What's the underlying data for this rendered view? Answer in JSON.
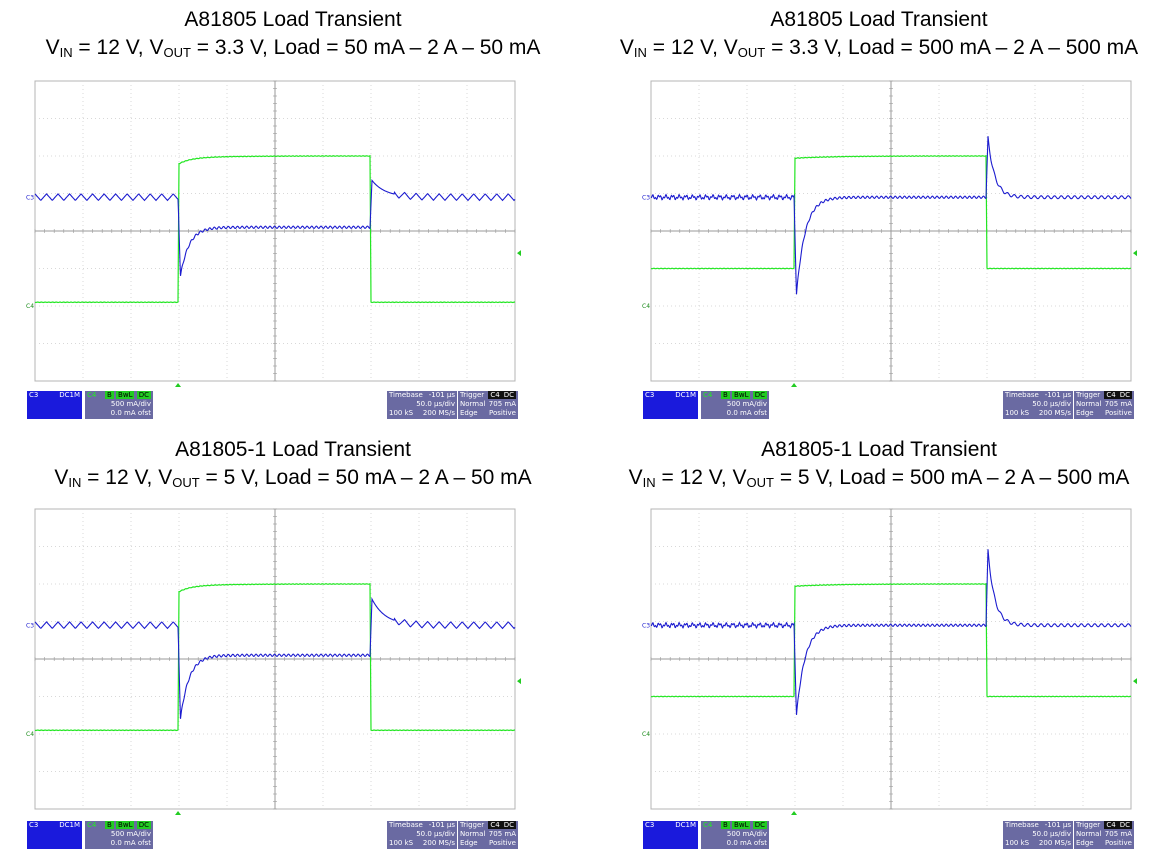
{
  "chart_data": [
    {
      "type": "line",
      "title": "A81805 Load Transient",
      "subtitle": {
        "pre": "V",
        "sub_in": "IN",
        "mid1": " = 12 V, V",
        "sub_out": "OUT",
        "rest": " = 3.3 V, Load = 50 mA – 2 A – 50 mA"
      },
      "xlim": [
        -101,
        399
      ],
      "series": [
        {
          "name": "C4",
          "color": "#22e622",
          "low": 0.05,
          "high": 2.0,
          "step_up_us": 48,
          "step_down_us": 248,
          "overshoot_dip": 0.08
        },
        {
          "name": "C3",
          "color": "#1c1ccf",
          "baseline_div": 3.1,
          "ripple": "sawtooth",
          "settled_div": 3.9,
          "undershoot_div": 5.2,
          "overshoot_div": 2.65
        }
      ],
      "channel_box": {
        "c3_label": "C3",
        "c3_l2": "DC1M",
        "c3_l3": "",
        "c4_label": "C4",
        "c4_badges": [
          "B",
          "BwL",
          "DC"
        ],
        "c4_scale": "500 mA/div",
        "c4_ofst": "0.0 mA ofst"
      },
      "timebase": {
        "label": "Timebase",
        "delay": "-101 µs",
        "per_div": "50.0 µs/div",
        "samples": "100 kS",
        "rate": "200 MS/s"
      },
      "trigger": {
        "label": "Trigger",
        "chip": "C4",
        "chip2": "DC",
        "mode": "Normal",
        "level": "705 mA",
        "type": "Edge",
        "slope": "Positive"
      }
    },
    {
      "type": "line",
      "title": "A81805 Load Transient",
      "subtitle": {
        "pre": "V",
        "sub_in": "IN",
        "mid1": " = 12 V, V",
        "sub_out": "OUT",
        "rest": " = 3.3 V, Load = 500 mA – 2 A – 500 mA"
      },
      "xlim": [
        -101,
        399
      ],
      "series": [
        {
          "name": "C4",
          "color": "#22e622",
          "low": 0.5,
          "high": 2.0,
          "step_up_us": 48,
          "step_down_us": 248,
          "overshoot_dip": 0.0
        },
        {
          "name": "C3",
          "color": "#1c1ccf",
          "baseline_div": 3.1,
          "ripple": "noise",
          "settled_div": 3.1,
          "undershoot_div": 5.7,
          "overshoot_div": 1.5
        }
      ],
      "channel_box": {
        "c3_label": "C3",
        "c3_l2": "DC1M",
        "c3_l3": "",
        "c4_label": "C4",
        "c4_badges": [
          "B",
          "BwL",
          "DC"
        ],
        "c4_scale": "500 mA/div",
        "c4_ofst": "0.0 mA ofst"
      },
      "timebase": {
        "label": "Timebase",
        "delay": "-101 µs",
        "per_div": "50.0 µs/div",
        "samples": "100 kS",
        "rate": "200 MS/s"
      },
      "trigger": {
        "label": "Trigger",
        "chip": "C4",
        "chip2": "DC",
        "mode": "Normal",
        "level": "705 mA",
        "type": "Edge",
        "slope": "Positive"
      }
    },
    {
      "type": "line",
      "title": "A81805-1 Load Transient",
      "subtitle": {
        "pre": "V",
        "sub_in": "IN",
        "mid1": " = 12 V, V",
        "sub_out": "OUT",
        "rest": " = 5 V, Load = 50 mA – 2 A – 50 mA"
      },
      "xlim": [
        -101,
        399
      ],
      "series": [
        {
          "name": "C4",
          "color": "#22e622",
          "low": 0.05,
          "high": 2.0,
          "step_up_us": 48,
          "step_down_us": 248,
          "overshoot_dip": 0.08
        },
        {
          "name": "C3",
          "color": "#1c1ccf",
          "baseline_div": 3.1,
          "ripple": "sawtooth",
          "settled_div": 3.9,
          "undershoot_div": 5.6,
          "overshoot_div": 2.4
        }
      ],
      "channel_box": {
        "c3_label": "C3",
        "c3_l2": "DC1M",
        "c3_l3": "",
        "c4_label": "C4",
        "c4_badges": [
          "B",
          "BwL",
          "DC"
        ],
        "c4_scale": "500 mA/div",
        "c4_ofst": "0.0 mA ofst"
      },
      "timebase": {
        "label": "Timebase",
        "delay": "-101 µs",
        "per_div": "50.0 µs/div",
        "samples": "100 kS",
        "rate": "200 MS/s"
      },
      "trigger": {
        "label": "Trigger",
        "chip": "C4",
        "chip2": "DC",
        "mode": "Normal",
        "level": "705 mA",
        "type": "Edge",
        "slope": "Positive"
      }
    },
    {
      "type": "line",
      "title": "A81805-1 Load Transient",
      "subtitle": {
        "pre": "V",
        "sub_in": "IN",
        "mid1": " = 12 V, V",
        "sub_out": "OUT",
        "rest": " = 5 V, Load = 500 mA – 2 A – 500 mA"
      },
      "xlim": [
        -101,
        399
      ],
      "series": [
        {
          "name": "C4",
          "color": "#22e622",
          "low": 0.5,
          "high": 2.0,
          "step_up_us": 48,
          "step_down_us": 248,
          "overshoot_dip": 0.0
        },
        {
          "name": "C3",
          "color": "#1c1ccf",
          "baseline_div": 3.1,
          "ripple": "noise",
          "settled_div": 3.1,
          "undershoot_div": 5.5,
          "overshoot_div": 1.1
        }
      ],
      "channel_box": {
        "c3_label": "C3",
        "c3_l2": "DC1M",
        "c3_l3": "",
        "c4_label": "C4",
        "c4_badges": [
          "B",
          "BwL",
          "DC"
        ],
        "c4_scale": "500 mA/div",
        "c4_ofst": "0.0 mA ofst"
      },
      "timebase": {
        "label": "Timebase",
        "delay": "-101 µs",
        "per_div": "50.0 µs/div",
        "samples": "100 kS",
        "rate": "200 MS/s"
      },
      "trigger": {
        "label": "Trigger",
        "chip": "C4",
        "chip2": "DC",
        "mode": "Normal",
        "level": "705 mA",
        "type": "Edge",
        "slope": "Positive"
      }
    }
  ],
  "colors": {
    "grid": "#d8d8d8",
    "frame": "#b4b4b4",
    "c4": "#22e622",
    "c3": "#1c1ccf"
  }
}
